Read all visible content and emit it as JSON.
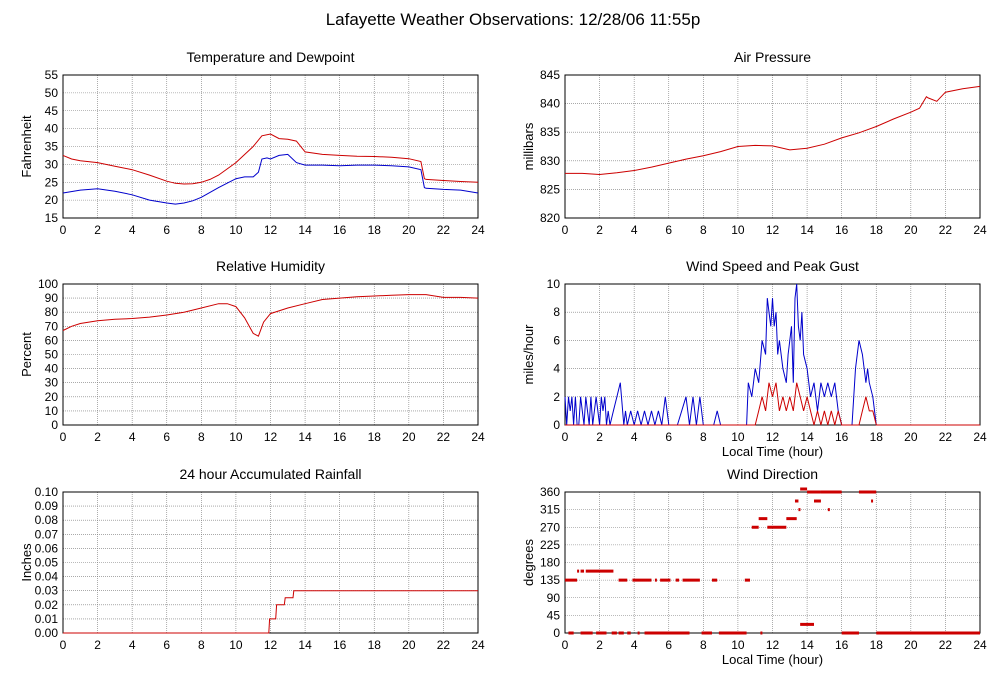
{
  "page": {
    "title": "Lafayette Weather Observations: 12/28/06 11:55p"
  },
  "chart_data": [
    {
      "id": "temp",
      "type": "line",
      "title": "Temperature and Dewpoint",
      "xlabel": "",
      "ylabel": "Fahrenheit",
      "xlim": [
        0,
        24
      ],
      "ylim": [
        15,
        55
      ],
      "xticks": [
        0,
        2,
        4,
        6,
        8,
        10,
        12,
        14,
        16,
        18,
        20,
        22,
        24
      ],
      "yticks": [
        15,
        20,
        25,
        30,
        35,
        40,
        45,
        50,
        55
      ],
      "grid": true,
      "series": [
        {
          "name": "",
          "color": "#cc0000",
          "x": [
            0,
            0.5,
            1,
            2,
            3,
            4,
            5,
            6,
            6.5,
            7,
            7.5,
            8,
            8.5,
            9,
            10,
            11,
            11.5,
            12,
            12.5,
            13,
            13.5,
            14,
            15,
            16,
            17,
            18,
            19,
            20,
            20.7,
            20.9,
            21,
            22,
            23,
            24
          ],
          "y": [
            32.5,
            31.5,
            31,
            30.5,
            29.5,
            28.5,
            27,
            25.3,
            24.7,
            24.5,
            24.6,
            25,
            25.8,
            27,
            30.5,
            35,
            38,
            38.5,
            37.2,
            37,
            36.5,
            33.5,
            32.8,
            32.5,
            32.3,
            32.2,
            32.0,
            31.6,
            30.8,
            26,
            25.8,
            25.5,
            25.2,
            25
          ]
        },
        {
          "name": "",
          "color": "#0000cc",
          "x": [
            0,
            1,
            2,
            3,
            4,
            5,
            6,
            6.5,
            7,
            7.5,
            8,
            9,
            10,
            10.5,
            11,
            11.3,
            11.5,
            11.8,
            12,
            12.5,
            13,
            13.5,
            14,
            15,
            16,
            17,
            18,
            19,
            20,
            20.7,
            20.9,
            21,
            22,
            23,
            24
          ],
          "y": [
            22,
            22.8,
            23.2,
            22.5,
            21.5,
            20,
            19.2,
            18.9,
            19.2,
            19.8,
            20.8,
            23.5,
            26,
            26.5,
            26.5,
            27.8,
            31.5,
            31.8,
            31.5,
            32.5,
            32.8,
            30.5,
            29.8,
            29.8,
            29.6,
            29.8,
            29.8,
            29.6,
            29.3,
            28.5,
            23.5,
            23.3,
            23,
            22.8,
            22
          ]
        }
      ]
    },
    {
      "id": "pressure",
      "type": "line",
      "title": "Air Pressure",
      "xlabel": "",
      "ylabel": "millibars",
      "xlim": [
        0,
        24
      ],
      "ylim": [
        820,
        845
      ],
      "xticks": [
        0,
        2,
        4,
        6,
        8,
        10,
        12,
        14,
        16,
        18,
        20,
        22,
        24
      ],
      "yticks": [
        820,
        825,
        830,
        835,
        840,
        845
      ],
      "grid": true,
      "series": [
        {
          "name": "",
          "color": "#cc0000",
          "x": [
            0,
            1,
            2,
            3,
            4,
            5,
            6,
            7,
            8,
            9,
            10,
            11,
            12,
            13,
            14,
            15,
            16,
            17,
            18,
            19,
            20,
            20.5,
            20.9,
            21,
            21.5,
            22,
            23,
            24
          ],
          "y": [
            827.8,
            827.8,
            827.6,
            827.9,
            828.3,
            828.9,
            829.6,
            830.3,
            830.9,
            831.6,
            832.5,
            832.7,
            832.6,
            831.9,
            832.2,
            832.9,
            834.0,
            834.9,
            836.0,
            837.3,
            838.5,
            839.2,
            841.2,
            841.0,
            840.4,
            842.0,
            842.6,
            843.0
          ]
        }
      ]
    },
    {
      "id": "humidity",
      "type": "line",
      "title": "Relative Humidity",
      "xlabel": "",
      "ylabel": "Percent",
      "xlim": [
        0,
        24
      ],
      "ylim": [
        0,
        100
      ],
      "xticks": [
        0,
        2,
        4,
        6,
        8,
        10,
        12,
        14,
        16,
        18,
        20,
        22,
        24
      ],
      "yticks": [
        0,
        10,
        20,
        30,
        40,
        50,
        60,
        70,
        80,
        90,
        100
      ],
      "grid": true,
      "series": [
        {
          "name": "",
          "color": "#cc0000",
          "x": [
            0,
            0.5,
            1,
            2,
            3,
            4,
            5,
            6,
            7,
            8,
            9,
            9.5,
            10,
            10.5,
            11,
            11.3,
            11.6,
            12,
            13,
            14,
            15,
            16,
            17,
            18,
            19,
            20,
            21,
            22,
            23,
            24
          ],
          "y": [
            67,
            70,
            72,
            74,
            75,
            75.5,
            76.5,
            78,
            80,
            83,
            86,
            86,
            84,
            76,
            65,
            63,
            73,
            79,
            83,
            86,
            89,
            90,
            91,
            91.5,
            92,
            92.5,
            92.5,
            90.5,
            90.5,
            90
          ]
        }
      ]
    },
    {
      "id": "wind",
      "type": "line",
      "title": "Wind Speed and Peak Gust",
      "xlabel": "Local Time (hour)",
      "ylabel": "miles/hour",
      "xlim": [
        0,
        24
      ],
      "ylim": [
        0,
        10
      ],
      "xticks": [
        0,
        2,
        4,
        6,
        8,
        10,
        12,
        14,
        16,
        18,
        20,
        22,
        24
      ],
      "yticks": [
        0,
        2,
        4,
        6,
        8,
        10
      ],
      "grid": true,
      "series": [
        {
          "name": "",
          "color": "#0000cc",
          "x": [
            0,
            0.1,
            0.2,
            0.3,
            0.4,
            0.5,
            0.6,
            0.7,
            0.8,
            0.9,
            1.0,
            1.1,
            1.2,
            1.4,
            1.5,
            1.6,
            1.8,
            2.0,
            2.1,
            2.2,
            2.3,
            2.4,
            2.5,
            2.6,
            2.8,
            3.0,
            3.2,
            3.4,
            3.5,
            3.6,
            3.8,
            4.0,
            4.2,
            4.4,
            4.6,
            4.8,
            5.0,
            5.2,
            5.4,
            5.6,
            5.8,
            6.0,
            6.5,
            7.0,
            7.2,
            7.4,
            7.6,
            7.8,
            8.0,
            8.6,
            8.8,
            9.0,
            10.5,
            10.6,
            10.8,
            11.0,
            11.2,
            11.4,
            11.6,
            11.7,
            11.8,
            11.9,
            12.0,
            12.1,
            12.2,
            12.3,
            12.4,
            12.6,
            12.8,
            12.9,
            13.0,
            13.1,
            13.2,
            13.3,
            13.4,
            13.5,
            13.6,
            13.7,
            13.8,
            14.0,
            14.2,
            14.4,
            14.6,
            14.8,
            15.0,
            15.2,
            15.4,
            15.6,
            15.8,
            16.0,
            16.2,
            16.6,
            16.8,
            17.0,
            17.2,
            17.4,
            17.5,
            17.6,
            17.8,
            18.0,
            18.1,
            18.2,
            18.5,
            19,
            20,
            21,
            22,
            23,
            24
          ],
          "y": [
            2,
            0,
            2,
            1,
            2,
            0,
            2,
            0,
            0,
            2,
            1,
            0,
            2,
            0,
            2,
            0,
            2,
            0,
            2,
            1,
            2,
            0,
            1,
            0,
            1,
            2,
            3,
            0,
            1,
            0,
            1,
            0,
            1,
            0,
            1,
            0,
            1,
            0,
            1,
            0,
            2,
            0,
            0,
            2,
            0,
            2,
            0,
            2,
            0,
            0,
            1,
            0,
            0,
            3,
            2,
            4,
            3,
            6,
            5,
            9,
            8,
            7,
            9,
            7,
            8,
            5,
            6,
            4,
            3,
            5,
            6,
            7,
            3,
            9,
            10,
            7,
            6,
            8,
            5,
            4,
            2,
            3,
            1,
            3,
            2,
            3,
            2,
            3,
            1,
            0,
            0,
            0,
            4,
            6,
            5,
            3,
            4,
            3,
            2,
            0,
            0,
            0,
            0,
            0,
            0,
            0,
            0,
            0,
            0
          ]
        },
        {
          "name": "",
          "color": "#cc0000",
          "x": [
            0,
            10.5,
            11.0,
            11.2,
            11.4,
            11.6,
            11.8,
            12.0,
            12.2,
            12.4,
            12.6,
            12.8,
            13.0,
            13.2,
            13.4,
            13.6,
            13.8,
            14.0,
            14.2,
            14.4,
            14.6,
            14.8,
            15.0,
            15.2,
            15.4,
            15.6,
            15.8,
            16.0,
            17.0,
            17.2,
            17.4,
            17.6,
            17.8,
            18.0,
            18.2,
            24
          ],
          "y": [
            0,
            0,
            0,
            1,
            2,
            1,
            3,
            2,
            3,
            1,
            2,
            1,
            2,
            1,
            3,
            2,
            1,
            2,
            1,
            0,
            1,
            0,
            1,
            0,
            1,
            0,
            1,
            0,
            0,
            1,
            2,
            1,
            1,
            0,
            0,
            0
          ]
        }
      ]
    },
    {
      "id": "rain",
      "type": "line",
      "title": "24 hour Accumulated Rainfall",
      "xlabel": "",
      "ylabel": "Inches",
      "xlim": [
        0,
        24
      ],
      "ylim": [
        0,
        0.1
      ],
      "xticks": [
        0,
        2,
        4,
        6,
        8,
        10,
        12,
        14,
        16,
        18,
        20,
        22,
        24
      ],
      "yticks": [
        "0.00",
        "0.01",
        "0.02",
        "0.03",
        "0.04",
        "0.05",
        "0.06",
        "0.07",
        "0.08",
        "0.09",
        "0.10"
      ],
      "grid": true,
      "series": [
        {
          "name": "",
          "color": "#cc0000",
          "x": [
            0,
            11.9,
            11.95,
            12.3,
            12.35,
            12.8,
            12.85,
            13.3,
            13.35,
            24
          ],
          "y": [
            0,
            0,
            0.01,
            0.01,
            0.02,
            0.02,
            0.025,
            0.025,
            0.03,
            0.03
          ]
        }
      ]
    },
    {
      "id": "direction",
      "type": "scatter",
      "title": "Wind Direction",
      "xlabel": "Local Time (hour)",
      "ylabel": "degrees",
      "xlim": [
        0,
        24
      ],
      "ylim": [
        0,
        360
      ],
      "xticks": [
        0,
        2,
        4,
        6,
        8,
        10,
        12,
        14,
        16,
        18,
        20,
        22,
        24
      ],
      "yticks": [
        0,
        45,
        90,
        135,
        180,
        225,
        270,
        315,
        360
      ],
      "grid": true,
      "series": [
        {
          "name": "",
          "color": "#cc0000",
          "segments": [
            [
              0,
              0.7,
              135
            ],
            [
              0.2,
              0.5,
              0
            ],
            [
              0.7,
              0.8,
              158
            ],
            [
              0.9,
              1.1,
              158
            ],
            [
              1.2,
              2.8,
              158
            ],
            [
              0.9,
              1.6,
              0
            ],
            [
              1.8,
              2.4,
              0
            ],
            [
              2.7,
              3.0,
              0
            ],
            [
              3.1,
              3.4,
              0
            ],
            [
              3.6,
              3.8,
              0
            ],
            [
              3.1,
              3.6,
              135
            ],
            [
              3.9,
              5.0,
              135
            ],
            [
              5.2,
              5.3,
              135
            ],
            [
              5.5,
              6.1,
              135
            ],
            [
              6.4,
              6.6,
              135
            ],
            [
              6.8,
              7.8,
              135
            ],
            [
              8.5,
              8.8,
              135
            ],
            [
              4.2,
              4.3,
              0
            ],
            [
              4.6,
              7.2,
              0
            ],
            [
              7.9,
              8.5,
              0
            ],
            [
              8.9,
              10.5,
              0
            ],
            [
              11.3,
              11.4,
              0
            ],
            [
              10.4,
              10.7,
              135
            ],
            [
              10.8,
              11.2,
              270
            ],
            [
              11.2,
              11.7,
              292
            ],
            [
              11.7,
              12.8,
              270
            ],
            [
              12.8,
              13.4,
              292
            ],
            [
              13.3,
              13.5,
              337
            ],
            [
              13.5,
              13.6,
              315
            ],
            [
              13.6,
              14.4,
              22
            ],
            [
              13.6,
              14.0,
              370
            ],
            [
              14.0,
              14.8,
              360
            ],
            [
              14.4,
              14.8,
              337
            ],
            [
              14.8,
              16.0,
              360
            ],
            [
              15.2,
              15.3,
              315
            ],
            [
              16.0,
              17.0,
              0
            ],
            [
              17.0,
              18.0,
              360
            ],
            [
              17.7,
              17.8,
              337
            ],
            [
              18.0,
              24.0,
              0
            ]
          ]
        }
      ]
    }
  ]
}
